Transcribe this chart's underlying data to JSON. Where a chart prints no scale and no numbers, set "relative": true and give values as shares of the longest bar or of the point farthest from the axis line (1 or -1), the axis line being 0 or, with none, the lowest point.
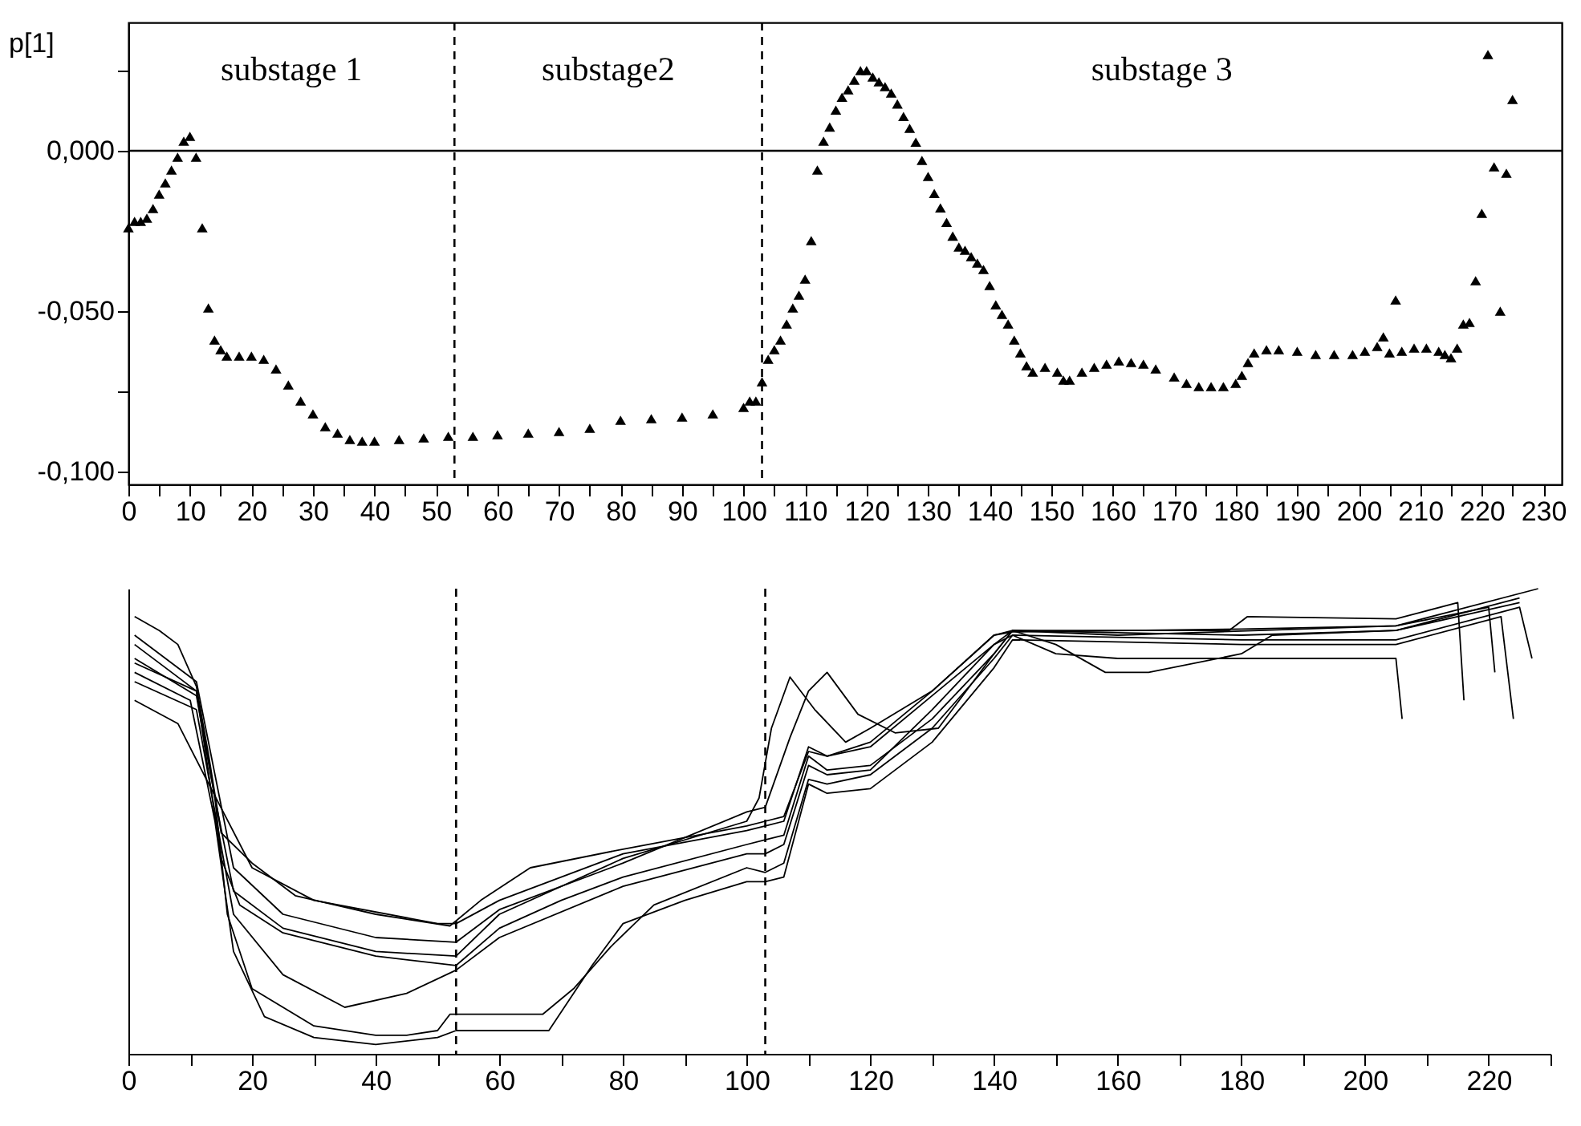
{
  "chart_data": [
    {
      "type": "scatter",
      "marker": "triangle",
      "ylabel": "p[1]",
      "xlim": [
        0,
        233
      ],
      "ylim": [
        -0.104,
        0.04
      ],
      "xticks": [
        0,
        {
          "value": 5,
          "label": null
        },
        10,
        {
          "value": 15,
          "label": null
        },
        20,
        {
          "value": 25,
          "label": null
        },
        30,
        {
          "value": 35,
          "label": null
        },
        40,
        {
          "value": 45,
          "label": null
        },
        50,
        {
          "value": 55,
          "label": null
        },
        60,
        {
          "value": 65,
          "label": null
        },
        70,
        {
          "value": 75,
          "label": null
        },
        80,
        {
          "value": 85,
          "label": null
        },
        90,
        {
          "value": 95,
          "label": null
        },
        100,
        {
          "value": 105,
          "label": null
        },
        110,
        {
          "value": 115,
          "label": null
        },
        120,
        {
          "value": 125,
          "label": null
        },
        130,
        {
          "value": 135,
          "label": null
        },
        140,
        {
          "value": 145,
          "label": null
        },
        150,
        {
          "value": 155,
          "label": null
        },
        160,
        {
          "value": 165,
          "label": null
        },
        170,
        {
          "value": 175,
          "label": null
        },
        180,
        {
          "value": 185,
          "label": null
        },
        190,
        {
          "value": 195,
          "label": null
        },
        200,
        {
          "value": 205,
          "label": null
        },
        210,
        {
          "value": 215,
          "label": null
        },
        220,
        {
          "value": 225,
          "label": null
        },
        230
      ],
      "yticks": [
        {
          "value": -0.1,
          "label": "-0,100"
        },
        {
          "value": -0.075,
          "label": null
        },
        {
          "value": -0.05,
          "label": "-0,050"
        },
        {
          "value": 0,
          "label": "0,000"
        },
        {
          "value": 0.025,
          "label": null
        }
      ],
      "ref_lines": [
        {
          "axis": "y",
          "value": 0,
          "line_style": "solid"
        },
        {
          "axis": "x",
          "value": 53,
          "line_style": "dashed"
        },
        {
          "axis": "x",
          "value": 103,
          "line_style": "dashed"
        }
      ],
      "annotations": [
        "substage 1",
        "substage2",
        "substage 3"
      ],
      "series": [
        {
          "color": "#000000",
          "x": [
            0,
            1,
            2,
            3,
            4,
            5,
            6,
            7,
            8,
            9,
            10,
            11,
            12,
            13,
            14,
            15,
            16,
            18,
            20,
            22,
            24,
            26,
            28,
            30,
            32,
            34,
            36,
            38,
            40,
            44,
            48,
            52,
            56,
            60,
            65,
            70,
            75,
            80,
            85,
            90,
            95,
            100,
            101,
            102,
            103,
            104,
            105,
            106,
            107,
            108,
            109,
            110,
            111,
            112,
            113,
            114,
            115,
            116,
            117,
            118,
            119,
            120,
            121,
            122,
            123,
            124,
            125,
            126,
            127,
            128,
            129,
            130,
            131,
            132,
            133,
            134,
            135,
            136,
            137,
            138,
            139,
            140,
            141,
            142,
            143,
            144,
            145,
            146,
            147,
            149,
            151,
            152,
            153,
            155,
            157,
            159,
            161,
            163,
            165,
            167,
            170,
            172,
            174,
            176,
            178,
            180,
            181,
            182,
            183,
            185,
            187,
            190,
            193,
            196,
            199,
            201,
            203,
            204,
            205,
            206,
            207,
            209,
            211,
            213,
            214,
            215,
            216,
            217,
            218,
            219,
            220,
            221,
            222,
            223,
            224,
            225
          ],
          "values": [
            -0.024,
            -0.022,
            -0.022,
            -0.021,
            -0.018,
            -0.0135,
            -0.01,
            -0.006,
            -0.002,
            0.003,
            0.0045,
            -0.002,
            -0.024,
            -0.049,
            -0.059,
            -0.062,
            -0.064,
            -0.064,
            -0.064,
            -0.065,
            -0.068,
            -0.073,
            -0.078,
            -0.082,
            -0.086,
            -0.088,
            -0.09,
            -0.0905,
            -0.0905,
            -0.09,
            -0.0895,
            -0.089,
            -0.089,
            -0.0885,
            -0.088,
            -0.0875,
            -0.0865,
            -0.084,
            -0.0835,
            -0.083,
            -0.082,
            -0.08,
            -0.078,
            -0.078,
            -0.072,
            -0.065,
            -0.062,
            -0.059,
            -0.054,
            -0.049,
            -0.045,
            -0.04,
            -0.028,
            -0.006,
            0.003,
            0.0074,
            0.0127,
            0.0167,
            0.019,
            0.022,
            0.025,
            0.025,
            0.023,
            0.0215,
            0.02,
            0.018,
            0.0146,
            0.0107,
            0.007,
            0.0027,
            -0.003,
            -0.008,
            -0.0133,
            -0.0178,
            -0.0223,
            -0.0266,
            -0.03,
            -0.031,
            -0.033,
            -0.035,
            -0.037,
            -0.042,
            -0.048,
            -0.051,
            -0.054,
            -0.059,
            -0.063,
            -0.067,
            -0.069,
            -0.0675,
            -0.069,
            -0.0715,
            -0.0715,
            -0.069,
            -0.0675,
            -0.0665,
            -0.0655,
            -0.066,
            -0.0665,
            -0.068,
            -0.0705,
            -0.0725,
            -0.0735,
            -0.0735,
            -0.0735,
            -0.0725,
            -0.07,
            -0.066,
            -0.063,
            -0.062,
            -0.062,
            -0.0625,
            -0.0635,
            -0.0635,
            -0.0635,
            -0.0625,
            -0.061,
            -0.058,
            -0.063,
            -0.0465,
            -0.0625,
            -0.0615,
            -0.0615,
            -0.0625,
            -0.0635,
            -0.0645,
            -0.0615,
            -0.054,
            -0.0535,
            -0.0405,
            -0.0195,
            0.03,
            -0.005,
            -0.05,
            -0.007,
            0.016
          ]
        }
      ]
    },
    {
      "type": "line",
      "relative": true,
      "line_style": "solid",
      "tick_labels": "x",
      "xlim": [
        0,
        230
      ],
      "xticks": [
        0,
        {
          "value": 10,
          "label": null
        },
        20,
        {
          "value": 30,
          "label": null
        },
        40,
        {
          "value": 50,
          "label": null
        },
        60,
        {
          "value": 70,
          "label": null
        },
        80,
        {
          "value": 90,
          "label": null
        },
        100,
        {
          "value": 110,
          "label": null
        },
        120,
        {
          "value": 130,
          "label": null
        },
        140,
        {
          "value": 150,
          "label": null
        },
        160,
        {
          "value": 170,
          "label": null
        },
        180,
        {
          "value": 190,
          "label": null
        },
        200,
        {
          "value": 210,
          "label": null
        },
        220,
        {
          "value": 230,
          "label": null
        }
      ],
      "ref_lines": [
        {
          "axis": "x",
          "value": 53,
          "line_style": "dashed"
        },
        {
          "axis": "x",
          "value": 103,
          "line_style": "dashed"
        }
      ],
      "series": [
        {
          "color": "#000000",
          "x": [
            1,
            5,
            8,
            11,
            13,
            15,
            20,
            27,
            40,
            52,
            57,
            65,
            80,
            100,
            103,
            106,
            110,
            113,
            120,
            130,
            140,
            143,
            180,
            205,
            228
          ],
          "values": [
            0.94,
            0.91,
            0.88,
            0.79,
            0.64,
            0.475,
            0.41,
            0.34,
            0.3,
            0.275,
            0.33,
            0.4,
            0.44,
            0.49,
            0.5,
            0.51,
            0.65,
            0.64,
            0.67,
            0.78,
            0.9,
            0.907,
            0.913,
            0.92,
            1.0
          ]
        },
        {
          "color": "#000000",
          "x": [
            1,
            11,
            13,
            15,
            18,
            25,
            40,
            53,
            60,
            70,
            80,
            100,
            103,
            106,
            110,
            113,
            120,
            130,
            140,
            143,
            180,
            205,
            225
          ],
          "values": [
            0.88,
            0.78,
            0.6,
            0.42,
            0.32,
            0.26,
            0.21,
            0.19,
            0.27,
            0.33,
            0.38,
            0.45,
            0.46,
            0.47,
            0.64,
            0.61,
            0.62,
            0.72,
            0.86,
            0.91,
            0.9,
            0.91,
            0.97
          ]
        },
        {
          "color": "#000000",
          "x": [
            1,
            11,
            14,
            16,
            20,
            30,
            40,
            45,
            50,
            52,
            67,
            72,
            78,
            85,
            100,
            103,
            106,
            110,
            113,
            120,
            130,
            140,
            143,
            180,
            205,
            225,
            227
          ],
          "values": [
            0.85,
            0.77,
            0.55,
            0.3,
            0.14,
            0.06,
            0.04,
            0.04,
            0.05,
            0.085,
            0.085,
            0.14,
            0.23,
            0.32,
            0.4,
            0.39,
            0.41,
            0.59,
            0.58,
            0.6,
            0.7,
            0.85,
            0.9,
            0.89,
            0.89,
            0.96,
            0.85
          ]
        },
        {
          "color": "#000000",
          "x": [
            1,
            10,
            14,
            17,
            22,
            30,
            40,
            50,
            53,
            68,
            75,
            80,
            90,
            100,
            103,
            106,
            110,
            113,
            120,
            130,
            140,
            143,
            180,
            205,
            222,
            224
          ],
          "values": [
            0.82,
            0.76,
            0.5,
            0.22,
            0.08,
            0.035,
            0.02,
            0.035,
            0.05,
            0.05,
            0.19,
            0.28,
            0.33,
            0.37,
            0.37,
            0.38,
            0.58,
            0.56,
            0.57,
            0.67,
            0.83,
            0.89,
            0.88,
            0.88,
            0.94,
            0.72
          ]
        },
        {
          "color": "#000000",
          "x": [
            1,
            11,
            14,
            17,
            25,
            40,
            53,
            60,
            80,
            100,
            102,
            104,
            107,
            111,
            116,
            120,
            130,
            140,
            143,
            160,
            205,
            220,
            221
          ],
          "values": [
            0.84,
            0.78,
            0.55,
            0.35,
            0.27,
            0.22,
            0.21,
            0.3,
            0.42,
            0.5,
            0.55,
            0.7,
            0.81,
            0.74,
            0.67,
            0.7,
            0.78,
            0.9,
            0.91,
            0.9,
            0.92,
            0.96,
            0.82
          ]
        },
        {
          "color": "#000000",
          "x": [
            1,
            11,
            14,
            17,
            25,
            40,
            53,
            60,
            80,
            100,
            103,
            107,
            110,
            113,
            118,
            124,
            131,
            140,
            143,
            150,
            158,
            165,
            180,
            185,
            205,
            225
          ],
          "values": [
            0.9,
            0.8,
            0.6,
            0.4,
            0.3,
            0.25,
            0.24,
            0.31,
            0.41,
            0.52,
            0.53,
            0.68,
            0.78,
            0.82,
            0.73,
            0.69,
            0.7,
            0.86,
            0.91,
            0.88,
            0.82,
            0.82,
            0.86,
            0.9,
            0.91,
            0.98
          ]
        },
        {
          "color": "#000000",
          "x": [
            1,
            11,
            14,
            17,
            25,
            35,
            45,
            53,
            60,
            80,
            100,
            103,
            106,
            110,
            113,
            120,
            130,
            140,
            143,
            150,
            160,
            180,
            205,
            206
          ],
          "values": [
            0.8,
            0.74,
            0.52,
            0.3,
            0.17,
            0.1,
            0.13,
            0.18,
            0.25,
            0.36,
            0.43,
            0.43,
            0.45,
            0.62,
            0.6,
            0.61,
            0.74,
            0.88,
            0.9,
            0.86,
            0.85,
            0.85,
            0.85,
            0.72
          ]
        },
        {
          "color": "#000000",
          "x": [
            1,
            8,
            13,
            20,
            30,
            50,
            53,
            60,
            80,
            100,
            103,
            106,
            110,
            113,
            120,
            130,
            140,
            143,
            178,
            181,
            205,
            215,
            216
          ],
          "values": [
            0.76,
            0.71,
            0.58,
            0.4,
            0.33,
            0.28,
            0.28,
            0.33,
            0.43,
            0.48,
            0.49,
            0.5,
            0.66,
            0.64,
            0.66,
            0.77,
            0.88,
            0.91,
            0.91,
            0.94,
            0.935,
            0.97,
            0.76
          ]
        }
      ]
    }
  ]
}
